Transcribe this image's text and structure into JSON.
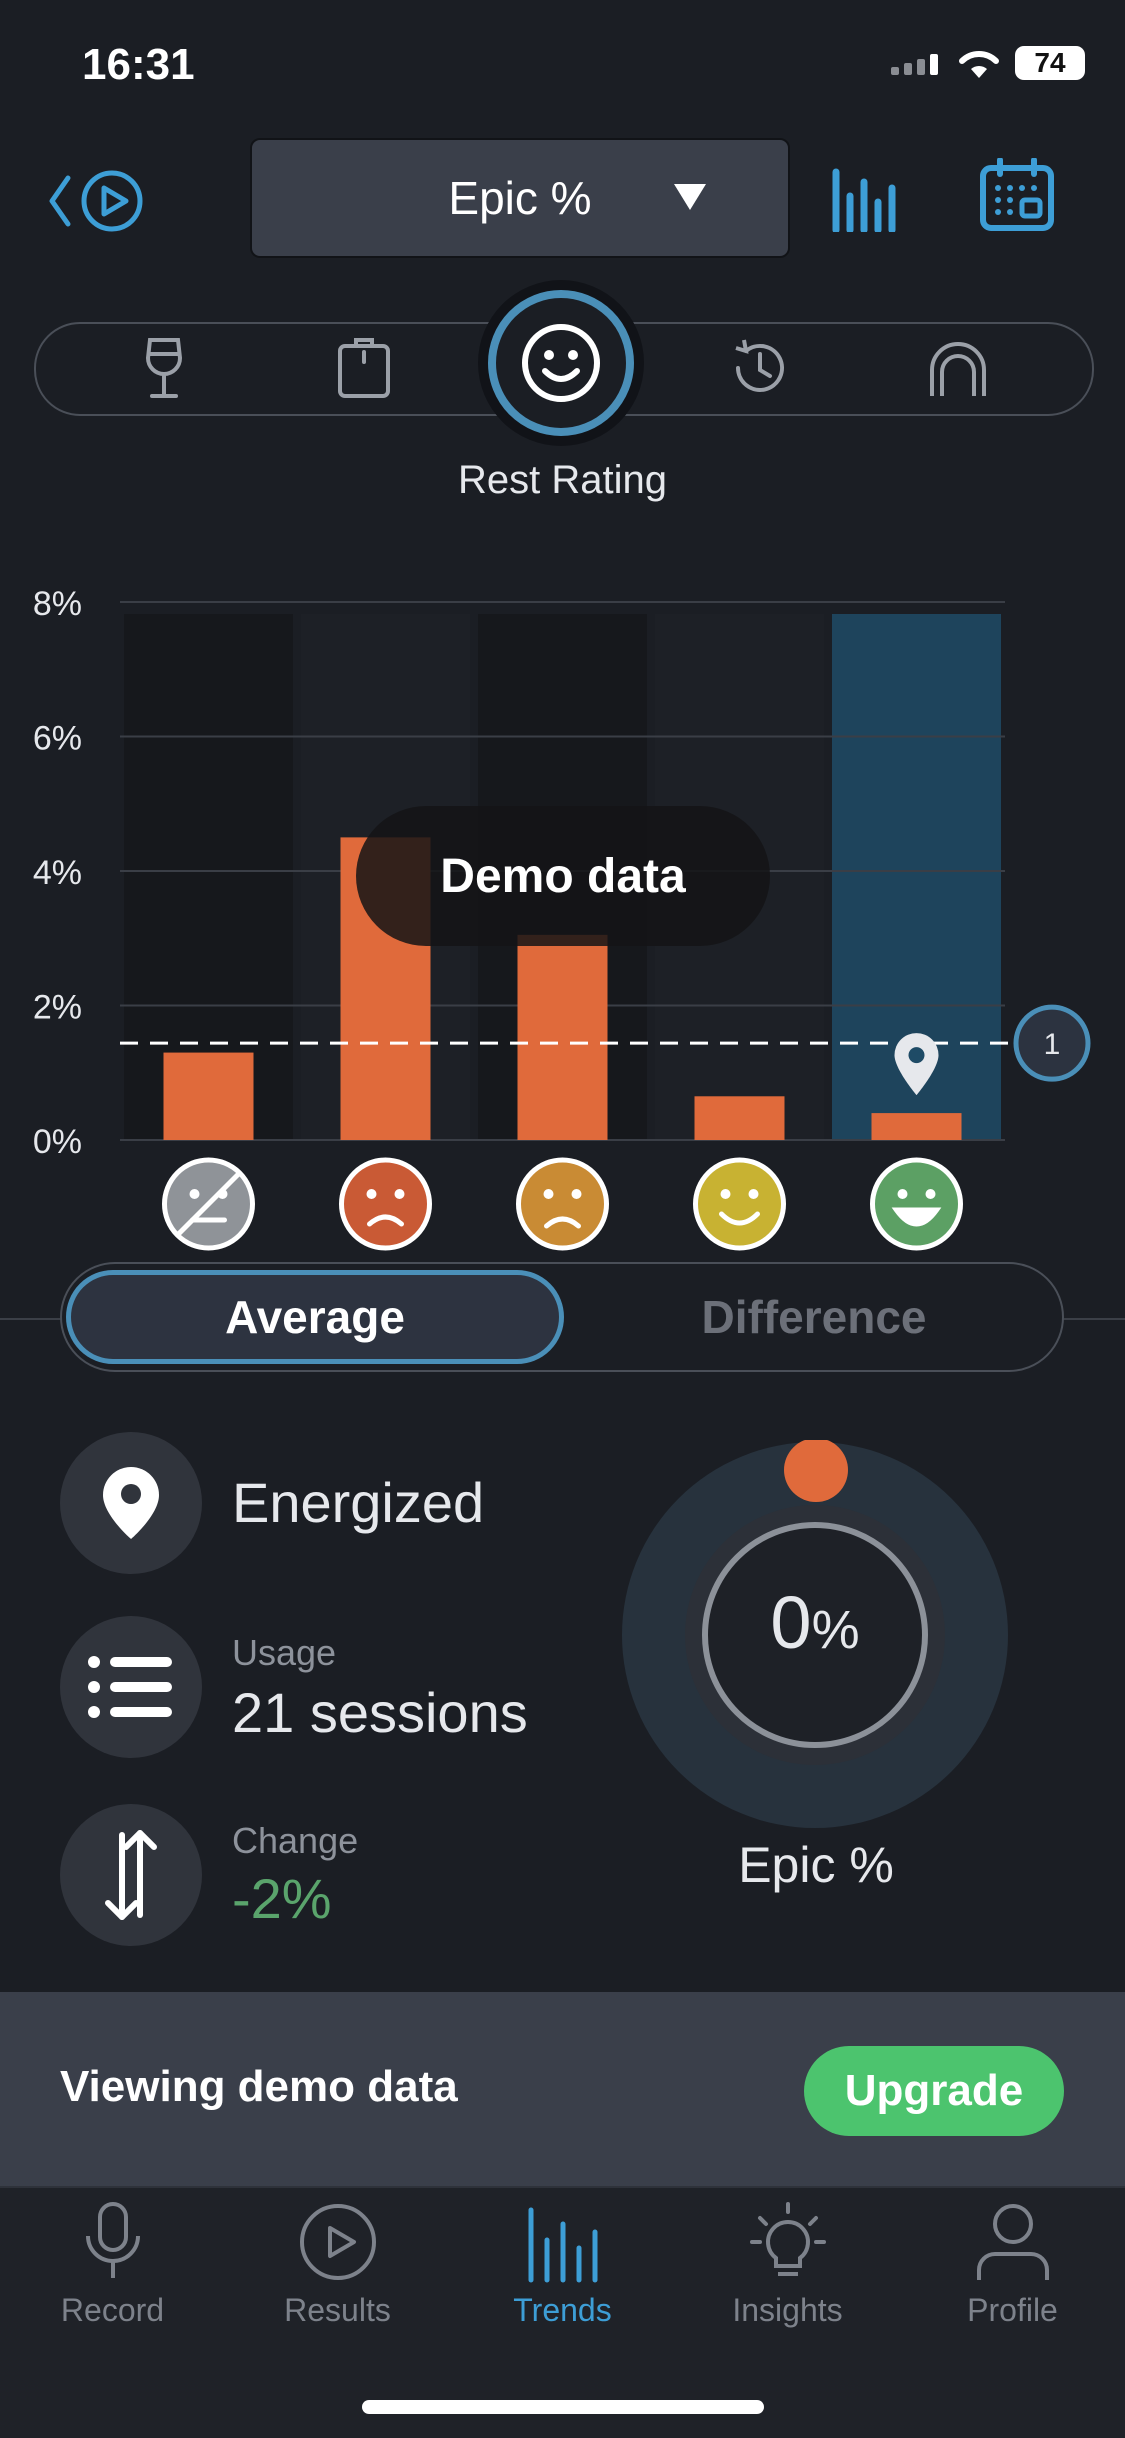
{
  "status_bar": {
    "time": "16:31",
    "battery": "74"
  },
  "header": {
    "metric": "Epic %"
  },
  "factor": {
    "selected_label": "Rest Rating",
    "icons": [
      "wine-glass-icon",
      "clipboard-icon",
      "smiley-icon",
      "history-icon",
      "arch-icon"
    ]
  },
  "chart_data": {
    "type": "bar",
    "categories": [
      "none",
      "very tired",
      "tired",
      "rested",
      "energized"
    ],
    "values": [
      1.3,
      4.5,
      3.05,
      0.65,
      0.4
    ],
    "y_ticks": [
      "0%",
      "2%",
      "4%",
      "6%",
      "8%"
    ],
    "ylim": [
      0,
      8
    ],
    "reference_line": 1.44,
    "reference_badge": "1",
    "highlighted_category": "energized",
    "bar_color": "#e06a3b",
    "highlight_color": "#1e4b66",
    "overlay_text": "Demo data"
  },
  "toggle": {
    "average": "Average",
    "difference": "Difference"
  },
  "stats": {
    "selected_label": "Energized",
    "usage_label": "Usage",
    "usage_value": "21 sessions",
    "change_label": "Change",
    "change_value": "-2%"
  },
  "gauge": {
    "value_number": "0",
    "value_unit": "%",
    "label": "Epic %"
  },
  "banner": {
    "text": "Viewing demo data",
    "button": "Upgrade"
  },
  "tabs": [
    {
      "label": "Record",
      "icon": "microphone-icon"
    },
    {
      "label": "Results",
      "icon": "play-icon"
    },
    {
      "label": "Trends",
      "icon": "bar-chart-icon"
    },
    {
      "label": "Insights",
      "icon": "lightbulb-icon"
    },
    {
      "label": "Profile",
      "icon": "person-icon"
    }
  ]
}
